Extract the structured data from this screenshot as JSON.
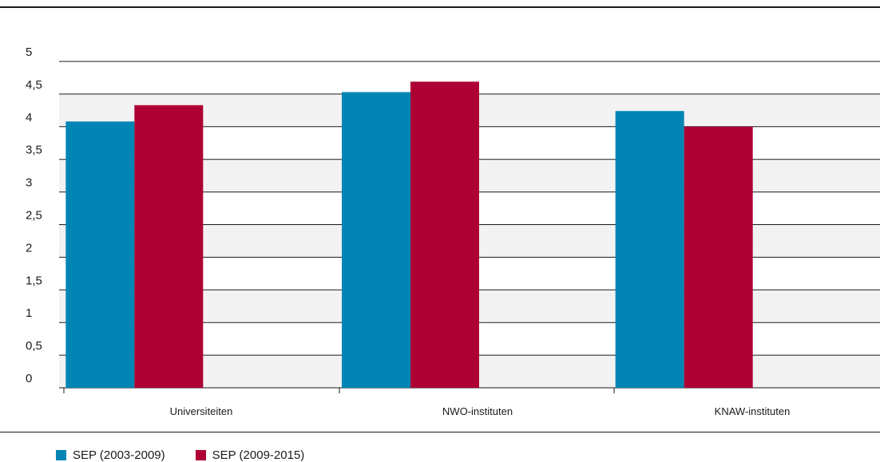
{
  "chart_data": {
    "type": "bar",
    "categories": [
      "Universiteiten",
      "NWO-instituten",
      "KNAW-instituten"
    ],
    "series": [
      {
        "name": "SEP (2003-2009)",
        "color": "#0085b5",
        "values": [
          4.08,
          4.53,
          4.24
        ]
      },
      {
        "name": "SEP (2009-2015)",
        "color": "#ae0035",
        "values": [
          4.33,
          4.69,
          4.0
        ]
      }
    ],
    "yticks": [
      "0",
      "0,5",
      "1",
      "1,5",
      "2",
      "2,5",
      "3",
      "3,5",
      "4",
      "4,5",
      "5"
    ],
    "ylim": [
      0,
      5
    ],
    "grid": true,
    "legend_position": "bottom-left",
    "title": "",
    "xlabel": "",
    "ylabel": ""
  }
}
